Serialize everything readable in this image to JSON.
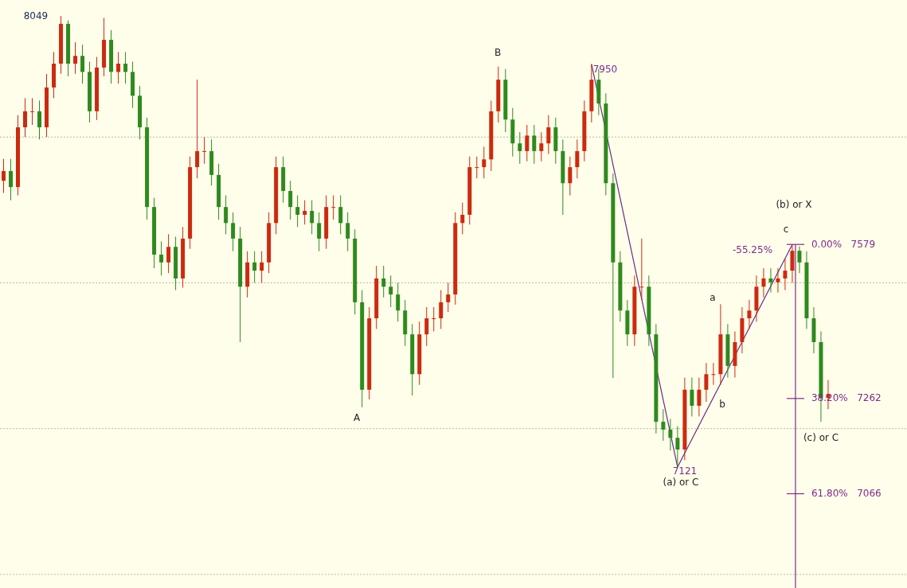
{
  "chart_data": {
    "type": "candlestick",
    "categories": [
      null,
      null,
      null,
      null,
      null,
      null,
      null,
      null,
      null,
      null,
      null,
      null,
      null,
      null,
      null,
      null,
      null,
      null,
      null,
      null,
      null,
      null,
      null,
      null,
      null,
      null,
      null,
      null,
      null,
      null,
      null,
      null,
      null,
      null,
      null,
      null,
      null,
      null,
      null,
      null,
      null,
      null,
      null,
      null,
      null,
      null,
      null,
      null,
      null,
      null,
      null,
      null,
      null,
      null,
      null,
      null,
      null,
      null,
      null,
      null,
      null,
      null,
      null,
      null,
      null,
      null,
      null,
      null,
      null,
      null,
      null,
      null,
      null,
      null,
      null,
      null,
      null,
      null,
      null,
      null,
      null,
      null,
      null,
      null,
      null,
      null,
      null,
      null,
      null,
      null,
      null,
      null,
      null,
      null,
      null,
      null,
      null,
      null,
      null,
      null,
      null,
      null,
      null,
      null,
      null,
      null,
      null,
      null,
      null,
      null,
      null,
      null,
      null,
      null,
      null,
      null
    ],
    "ohlc": [
      [
        7710,
        7755,
        7685,
        7730
      ],
      [
        7730,
        7755,
        7670,
        7697
      ],
      [
        7697,
        7845,
        7680,
        7820
      ],
      [
        7820,
        7880,
        7800,
        7853
      ],
      [
        7853,
        7880,
        7825,
        7853
      ],
      [
        7853,
        7875,
        7795,
        7820
      ],
      [
        7820,
        7930,
        7800,
        7902
      ],
      [
        7902,
        7975,
        7880,
        7951
      ],
      [
        7951,
        8049,
        7930,
        8033
      ],
      [
        8033,
        8040,
        7925,
        7951
      ],
      [
        7951,
        7995,
        7930,
        7967
      ],
      [
        7967,
        7990,
        7910,
        7934
      ],
      [
        7934,
        7955,
        7830,
        7853
      ],
      [
        7853,
        7965,
        7835,
        7943
      ],
      [
        7943,
        8045,
        7925,
        8000
      ],
      [
        8000,
        8020,
        7910,
        7934
      ],
      [
        7934,
        7975,
        7910,
        7951
      ],
      [
        7951,
        7975,
        7910,
        7934
      ],
      [
        7934,
        7955,
        7860,
        7885
      ],
      [
        7885,
        7905,
        7795,
        7820
      ],
      [
        7820,
        7840,
        7630,
        7656
      ],
      [
        7656,
        7675,
        7530,
        7558
      ],
      [
        7558,
        7585,
        7515,
        7542
      ],
      [
        7542,
        7600,
        7520,
        7574
      ],
      [
        7574,
        7595,
        7485,
        7509
      ],
      [
        7509,
        7615,
        7490,
        7591
      ],
      [
        7591,
        7760,
        7570,
        7738
      ],
      [
        7738,
        7918,
        7715,
        7771
      ],
      [
        7771,
        7800,
        7745,
        7771
      ],
      [
        7771,
        7795,
        7700,
        7722
      ],
      [
        7722,
        7745,
        7630,
        7656
      ],
      [
        7656,
        7680,
        7600,
        7623
      ],
      [
        7623,
        7645,
        7565,
        7591
      ],
      [
        7591,
        7615,
        7378,
        7492
      ],
      [
        7492,
        7565,
        7470,
        7542
      ],
      [
        7542,
        7565,
        7500,
        7525
      ],
      [
        7525,
        7565,
        7500,
        7542
      ],
      [
        7542,
        7645,
        7520,
        7623
      ],
      [
        7623,
        7760,
        7600,
        7738
      ],
      [
        7738,
        7760,
        7665,
        7689
      ],
      [
        7689,
        7710,
        7630,
        7656
      ],
      [
        7656,
        7680,
        7615,
        7640
      ],
      [
        7640,
        7670,
        7620,
        7648
      ],
      [
        7648,
        7670,
        7600,
        7623
      ],
      [
        7623,
        7645,
        7565,
        7591
      ],
      [
        7591,
        7680,
        7570,
        7656
      ],
      [
        7656,
        7680,
        7630,
        7656
      ],
      [
        7656,
        7680,
        7600,
        7623
      ],
      [
        7623,
        7645,
        7565,
        7591
      ],
      [
        7591,
        7610,
        7435,
        7460
      ],
      [
        7460,
        7485,
        7244,
        7280
      ],
      [
        7280,
        7450,
        7260,
        7427
      ],
      [
        7427,
        7535,
        7405,
        7509
      ],
      [
        7509,
        7535,
        7470,
        7492
      ],
      [
        7492,
        7515,
        7450,
        7476
      ],
      [
        7476,
        7500,
        7420,
        7443
      ],
      [
        7443,
        7465,
        7370,
        7394
      ],
      [
        7394,
        7415,
        7268,
        7312
      ],
      [
        7312,
        7420,
        7290,
        7394
      ],
      [
        7394,
        7450,
        7370,
        7427
      ],
      [
        7427,
        7450,
        7400,
        7427
      ],
      [
        7427,
        7485,
        7405,
        7460
      ],
      [
        7460,
        7500,
        7440,
        7476
      ],
      [
        7476,
        7645,
        7455,
        7623
      ],
      [
        7623,
        7665,
        7600,
        7640
      ],
      [
        7640,
        7760,
        7620,
        7738
      ],
      [
        7738,
        7760,
        7715,
        7738
      ],
      [
        7738,
        7780,
        7715,
        7754
      ],
      [
        7754,
        7875,
        7730,
        7853
      ],
      [
        7853,
        7945,
        7830,
        7918
      ],
      [
        7918,
        7940,
        7810,
        7836
      ],
      [
        7836,
        7860,
        7760,
        7787
      ],
      [
        7787,
        7810,
        7745,
        7771
      ],
      [
        7771,
        7825,
        7750,
        7803
      ],
      [
        7803,
        7825,
        7745,
        7771
      ],
      [
        7771,
        7810,
        7750,
        7787
      ],
      [
        7787,
        7845,
        7765,
        7820
      ],
      [
        7820,
        7840,
        7745,
        7771
      ],
      [
        7771,
        7795,
        7640,
        7705
      ],
      [
        7705,
        7760,
        7680,
        7738
      ],
      [
        7738,
        7795,
        7715,
        7771
      ],
      [
        7771,
        7875,
        7750,
        7853
      ],
      [
        7853,
        7950,
        7830,
        7918
      ],
      [
        7918,
        7940,
        7845,
        7869
      ],
      [
        7869,
        7890,
        7680,
        7705
      ],
      [
        7705,
        7725,
        7304,
        7542
      ],
      [
        7542,
        7565,
        7420,
        7443
      ],
      [
        7443,
        7465,
        7370,
        7394
      ],
      [
        7394,
        7515,
        7370,
        7492
      ],
      [
        7492,
        7591,
        7465,
        7492
      ],
      [
        7492,
        7515,
        7370,
        7394
      ],
      [
        7394,
        7415,
        7190,
        7214
      ],
      [
        7214,
        7240,
        7175,
        7198
      ],
      [
        7198,
        7220,
        7155,
        7181
      ],
      [
        7181,
        7205,
        7121,
        7157
      ],
      [
        7157,
        7305,
        7135,
        7280
      ],
      [
        7280,
        7305,
        7225,
        7247
      ],
      [
        7247,
        7305,
        7225,
        7280
      ],
      [
        7280,
        7335,
        7255,
        7312
      ],
      [
        7312,
        7335,
        7290,
        7312
      ],
      [
        7312,
        7456,
        7290,
        7394
      ],
      [
        7394,
        7415,
        7305,
        7329
      ],
      [
        7329,
        7400,
        7305,
        7378
      ],
      [
        7378,
        7450,
        7355,
        7427
      ],
      [
        7427,
        7465,
        7405,
        7443
      ],
      [
        7443,
        7515,
        7420,
        7492
      ],
      [
        7492,
        7530,
        7470,
        7509
      ],
      [
        7509,
        7530,
        7480,
        7501
      ],
      [
        7501,
        7530,
        7480,
        7509
      ],
      [
        7509,
        7550,
        7485,
        7525
      ],
      [
        7525,
        7579,
        7500,
        7566
      ],
      [
        7566,
        7575,
        7520,
        7542
      ],
      [
        7542,
        7565,
        7405,
        7427
      ],
      [
        7427,
        7450,
        7355,
        7378
      ],
      [
        7378,
        7400,
        7214,
        7263
      ],
      [
        7263,
        7300,
        7240,
        7271
      ]
    ],
    "series": [
      {
        "type": "line",
        "color": "#6a2a8a",
        "values": [
          null,
          null,
          null,
          null,
          null,
          null,
          null,
          null,
          null,
          null,
          null,
          null,
          null,
          null,
          null,
          null,
          null,
          null,
          null,
          null,
          null,
          null,
          null,
          null,
          null,
          null,
          null,
          null,
          null,
          null,
          null,
          null,
          null,
          null,
          null,
          null,
          null,
          null,
          null,
          null,
          null,
          null,
          null,
          null,
          null,
          null,
          null,
          null,
          null,
          null,
          null,
          null,
          null,
          null,
          null,
          null,
          null,
          null,
          null,
          null,
          null,
          null,
          null,
          null,
          null,
          null,
          null,
          null,
          null,
          null,
          null,
          null,
          null,
          null,
          null,
          null,
          null,
          null,
          null,
          null,
          null,
          null,
          7950,
          null,
          null,
          null,
          null,
          null,
          null,
          null,
          null,
          null,
          null,
          null,
          7121,
          null,
          null,
          null,
          null,
          null,
          null,
          null,
          null,
          null,
          null,
          null,
          null,
          null,
          null,
          null,
          7579,
          null,
          null,
          null,
          null,
          null
        ]
      }
    ],
    "ylim": [
      6872,
      8082
    ],
    "yticks": [
      {
        "value": 7800,
        "label": null
      },
      {
        "value": 7500,
        "label": null
      },
      {
        "value": 7200,
        "label": null
      },
      {
        "value": 6900,
        "label": null
      }
    ],
    "grid": "y",
    "tick_labels": false,
    "ref_lines": [
      {
        "axis": "y",
        "value": 7579,
        "label": "0.00%   7579",
        "color": "#7a2a8a"
      },
      {
        "axis": "y",
        "value": 7262,
        "label": "38.20%   7262",
        "color": "#7a2a8a"
      },
      {
        "axis": "y",
        "value": 7066,
        "label": "61.80%   7066",
        "color": "#7a2a8a"
      }
    ],
    "annotations": [
      "8049",
      "B",
      "A",
      "7950",
      "7121",
      "(a) or C",
      "a",
      "b",
      "c",
      "(b) or X",
      "(c) or C",
      "-55.25%"
    ]
  }
}
